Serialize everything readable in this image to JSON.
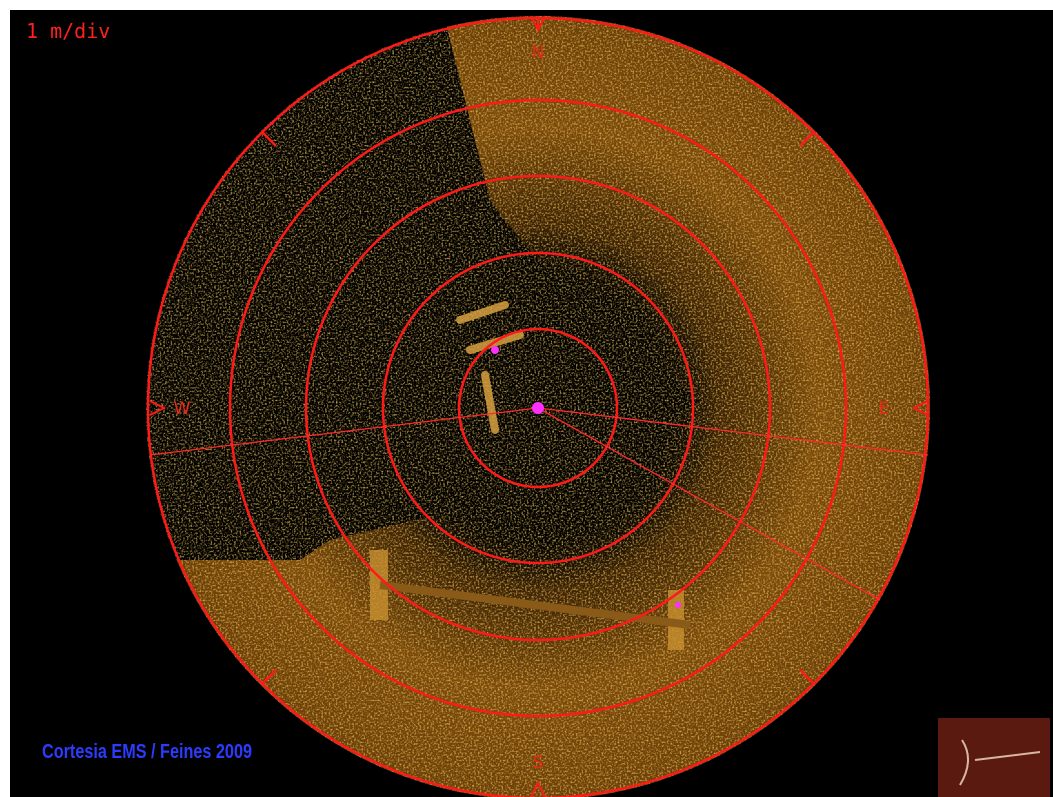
{
  "display": {
    "scale_label": "1 m/div",
    "compass": {
      "north": "N",
      "south": "S",
      "east": "E",
      "west": "W"
    },
    "credit": "Cortesia EMS / Feines 2009"
  }
}
